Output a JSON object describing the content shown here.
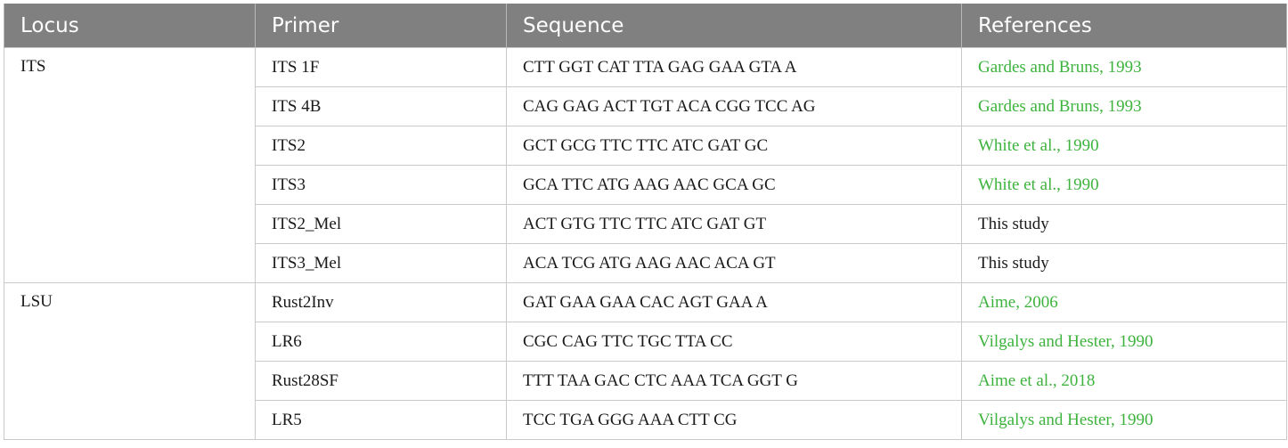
{
  "table": {
    "headers": {
      "locus": "Locus",
      "primer": "Primer",
      "sequence": "Sequence",
      "references": "References"
    },
    "groups": [
      {
        "locus": "ITS",
        "rows": [
          {
            "primer": "ITS 1F",
            "sequence": "CTT GGT CAT TTA GAG GAA GTA A",
            "reference": "Gardes and Bruns, 1993",
            "is_link": true
          },
          {
            "primer": "ITS 4B",
            "sequence": "CAG GAG ACT TGT ACA CGG TCC AG",
            "reference": "Gardes and Bruns, 1993",
            "is_link": true
          },
          {
            "primer": "ITS2",
            "sequence": "GCT GCG TTC TTC ATC GAT GC",
            "reference": "White et al., 1990",
            "is_link": true
          },
          {
            "primer": "ITS3",
            "sequence": "GCA TTC ATG AAG AAC GCA GC",
            "reference": "White et al., 1990",
            "is_link": true
          },
          {
            "primer": "ITS2_Mel",
            "sequence": "ACT GTG TTC TTC ATC GAT GT",
            "reference": "This study",
            "is_link": false
          },
          {
            "primer": "ITS3_Mel",
            "sequence": "ACA TCG ATG AAG AAC ACA GT",
            "reference": "This study",
            "is_link": false
          }
        ]
      },
      {
        "locus": "LSU",
        "rows": [
          {
            "primer": "Rust2Inv",
            "sequence": "GAT GAA GAA CAC AGT GAA A",
            "reference": "Aime, 2006",
            "is_link": true
          },
          {
            "primer": "LR6",
            "sequence": "CGC CAG TTC TGC TTA CC",
            "reference": "Vilgalys and Hester, 1990",
            "is_link": true
          },
          {
            "primer": "Rust28SF",
            "sequence": "TTT TAA GAC CTC AAA TCA GGT G",
            "reference": "Aime et al., 2018",
            "is_link": true
          },
          {
            "primer": "LR5",
            "sequence": "TCC TGA GGG AAA CTT CG",
            "reference": "Vilgalys and Hester, 1990",
            "is_link": true
          }
        ]
      }
    ]
  },
  "colors": {
    "header_bg": "#808080",
    "header_text": "#ffffff",
    "link": "#3db33d",
    "border": "#c9c9c9"
  }
}
